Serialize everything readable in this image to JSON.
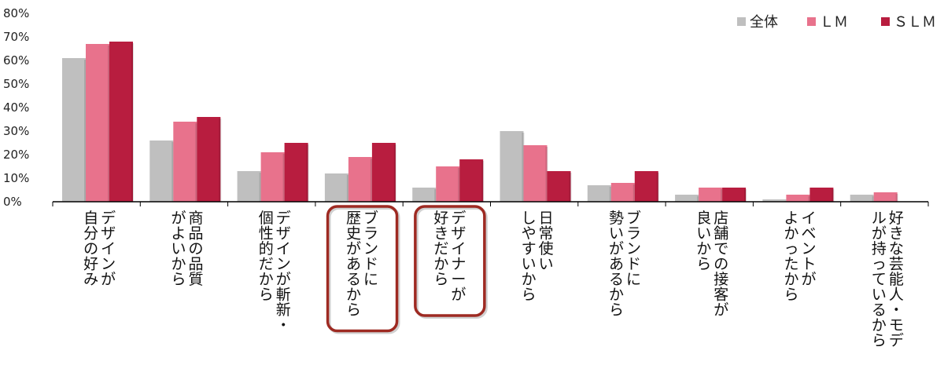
{
  "chart_data": {
    "type": "bar",
    "title": "",
    "xlabel": "",
    "ylabel": "",
    "ylim": [
      0,
      80
    ],
    "yticks": [
      "0%",
      "10%",
      "20%",
      "30%",
      "40%",
      "50%",
      "60%",
      "70%",
      "80%"
    ],
    "grid": false,
    "legend_position": "top-right",
    "categories": [
      {
        "lines": [
          "デザインが",
          "自分の好み"
        ],
        "highlighted": false
      },
      {
        "lines": [
          "商品の品質",
          "がよいから"
        ],
        "highlighted": false
      },
      {
        "lines": [
          "デザインが斬新・",
          "個性的だから"
        ],
        "highlighted": false
      },
      {
        "lines": [
          "ブランドに",
          "歴史があるから"
        ],
        "highlighted": true
      },
      {
        "lines": [
          "デザイナーが",
          "好きだから"
        ],
        "highlighted": true
      },
      {
        "lines": [
          "日常使い",
          "しやすいから"
        ],
        "highlighted": false
      },
      {
        "lines": [
          "ブランドに",
          "勢いがあるから"
        ],
        "highlighted": false
      },
      {
        "lines": [
          "店舗での接客が",
          "良いから"
        ],
        "highlighted": false
      },
      {
        "lines": [
          "イベントが",
          "よかったから"
        ],
        "highlighted": false
      },
      {
        "lines": [
          "好きな芸能人・モデ",
          "ルが持っているから"
        ],
        "highlighted": false
      }
    ],
    "series": [
      {
        "name": "全体",
        "color": "#bfbfbf",
        "values": [
          61,
          26,
          13,
          12,
          6,
          30,
          7,
          3,
          1,
          3
        ]
      },
      {
        "name": "ＬＭ",
        "color": "#e8728c",
        "values": [
          67,
          34,
          21,
          19,
          15,
          24,
          8,
          6,
          3,
          4
        ]
      },
      {
        "name": "ＳＬＭ",
        "color": "#b81d3f",
        "values": [
          68,
          36,
          25,
          25,
          18,
          13,
          13,
          6,
          6,
          0
        ]
      }
    ],
    "highlight_color": "#9e2a22"
  }
}
